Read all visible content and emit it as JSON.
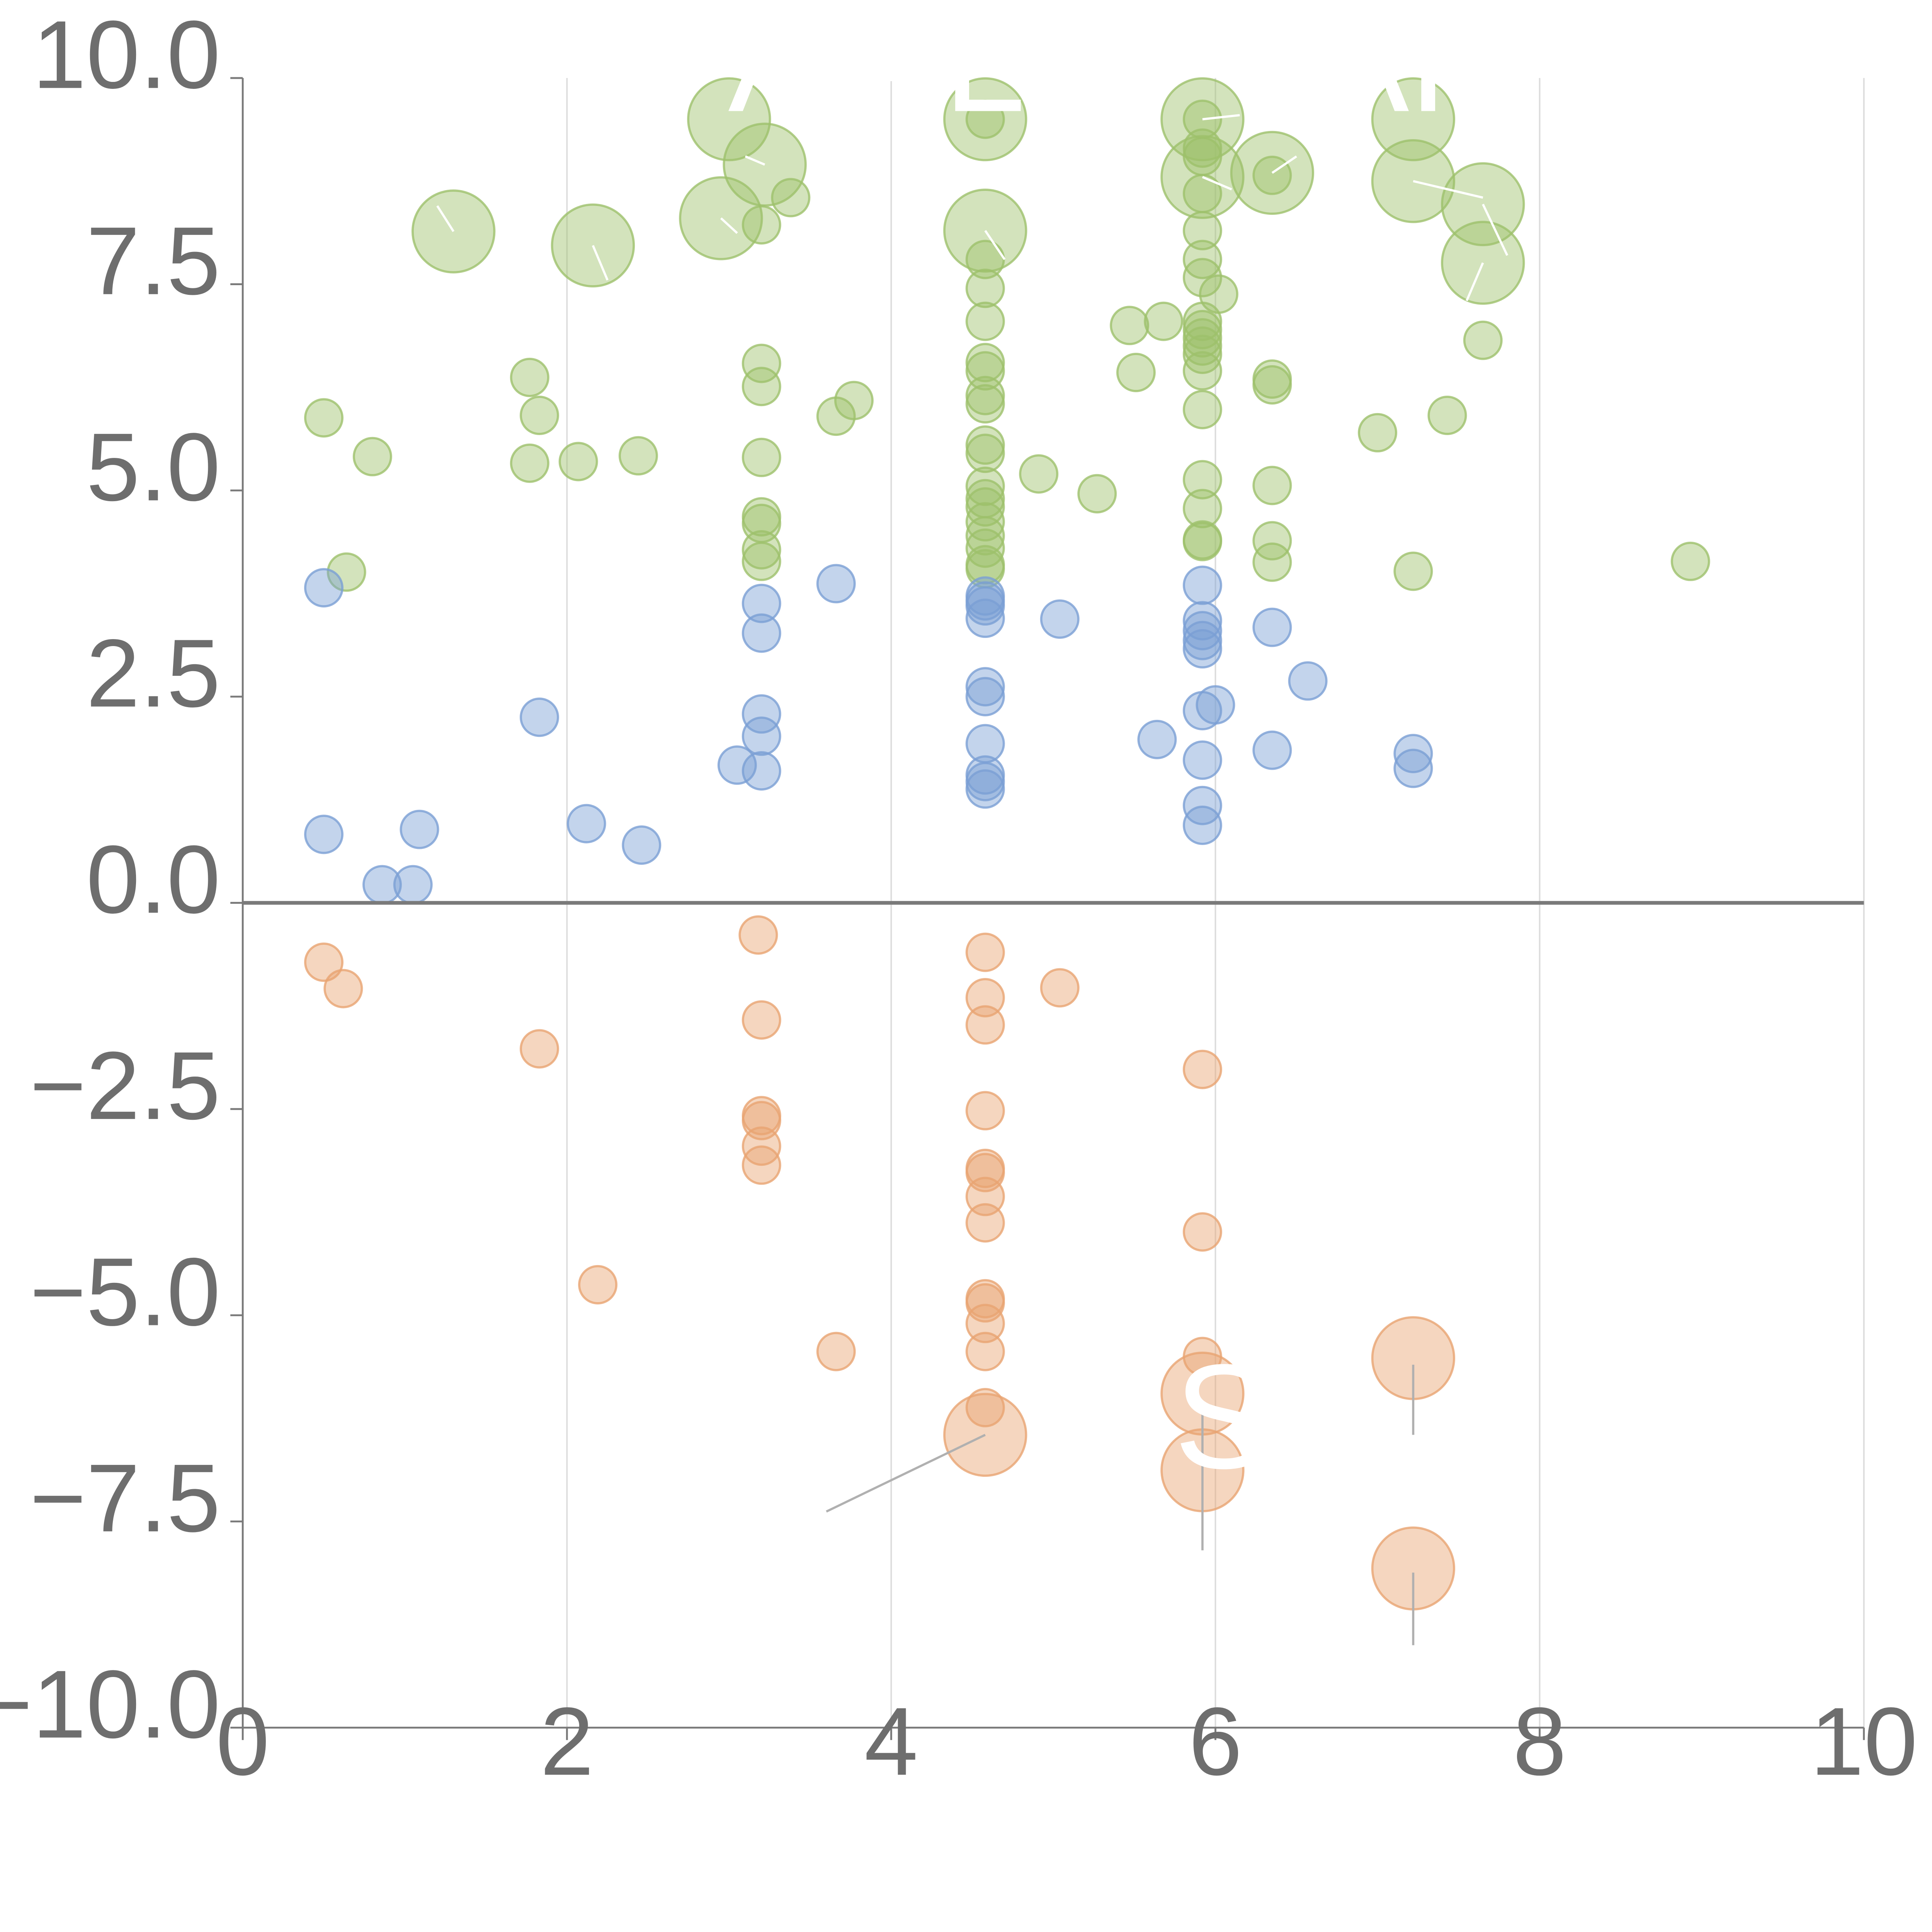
{
  "chart_data": {
    "type": "scatter",
    "title": "",
    "xlabel": "",
    "ylabel": "",
    "xlim": [
      0,
      10
    ],
    "ylim": [
      -10,
      10
    ],
    "grid": "vertical",
    "x_ticks": [
      "0",
      "2",
      "4",
      "6",
      "8",
      "10"
    ],
    "y_ticks": [
      "10.0",
      "7.5",
      "5.0",
      "2.5",
      "0.0",
      "−2.5",
      "−5.0",
      "−7.5",
      "−10.0"
    ],
    "series": [
      {
        "name": "green",
        "color": "#9dc16b",
        "points": [
          [
            0.5,
            5.88,
            1
          ],
          [
            0.8,
            5.41,
            1
          ],
          [
            0.64,
            4.01,
            1
          ],
          [
            1.3,
            8.14,
            2.2
          ],
          [
            1.77,
            6.37,
            1
          ],
          [
            1.77,
            5.33,
            1
          ],
          [
            1.83,
            5.91,
            1
          ],
          [
            2.07,
            5.35,
            1
          ],
          [
            2.16,
            7.97,
            2.2
          ],
          [
            2.44,
            5.42,
            1
          ],
          [
            3.0,
            9.5,
            2.2
          ],
          [
            2.95,
            8.3,
            2.2
          ],
          [
            3.22,
            8.95,
            2.2
          ],
          [
            3.2,
            8.22,
            1
          ],
          [
            3.38,
            8.55,
            1
          ],
          [
            3.2,
            6.54,
            1
          ],
          [
            3.2,
            6.26,
            1
          ],
          [
            3.2,
            5.4,
            1
          ],
          [
            3.2,
            4.68,
            1
          ],
          [
            3.2,
            4.6,
            1
          ],
          [
            3.2,
            4.28,
            1
          ],
          [
            3.2,
            4.14,
            1
          ],
          [
            3.66,
            5.9,
            1
          ],
          [
            3.77,
            6.09,
            1
          ],
          [
            4.58,
            9.5,
            2.2
          ],
          [
            4.58,
            9.5,
            1
          ],
          [
            4.58,
            8.15,
            2.2
          ],
          [
            4.58,
            7.8,
            1
          ],
          [
            4.58,
            7.45,
            1
          ],
          [
            4.58,
            7.05,
            1
          ],
          [
            4.58,
            6.55,
            1
          ],
          [
            4.58,
            6.45,
            1
          ],
          [
            4.58,
            6.15,
            1
          ],
          [
            4.58,
            6.05,
            1
          ],
          [
            4.58,
            5.55,
            1
          ],
          [
            4.58,
            5.45,
            1
          ],
          [
            4.58,
            5.05,
            1
          ],
          [
            4.58,
            4.9,
            1
          ],
          [
            4.58,
            4.8,
            1
          ],
          [
            4.58,
            4.62,
            1
          ],
          [
            4.58,
            4.45,
            1
          ],
          [
            4.58,
            4.3,
            1
          ],
          [
            4.58,
            4.1,
            1
          ],
          [
            4.58,
            4.05,
            1
          ],
          [
            4.91,
            5.2,
            1
          ],
          [
            5.27,
            4.96,
            1
          ],
          [
            5.47,
            7.0,
            1
          ],
          [
            5.51,
            6.43,
            1
          ],
          [
            5.68,
            7.05,
            1
          ],
          [
            5.92,
            9.5,
            2.2
          ],
          [
            5.92,
            9.5,
            1
          ],
          [
            5.92,
            9.15,
            1
          ],
          [
            5.92,
            9.05,
            1
          ],
          [
            5.92,
            8.8,
            2.2
          ],
          [
            5.92,
            8.6,
            1
          ],
          [
            5.92,
            8.15,
            1
          ],
          [
            5.92,
            7.8,
            1
          ],
          [
            5.92,
            7.58,
            1
          ],
          [
            6.02,
            7.38,
            1
          ],
          [
            5.92,
            7.05,
            1
          ],
          [
            5.92,
            6.95,
            1
          ],
          [
            5.92,
            6.85,
            1
          ],
          [
            5.92,
            6.75,
            1
          ],
          [
            5.92,
            6.65,
            1
          ],
          [
            5.92,
            6.45,
            1
          ],
          [
            5.92,
            5.98,
            1
          ],
          [
            5.92,
            5.13,
            1
          ],
          [
            5.92,
            4.78,
            1
          ],
          [
            5.92,
            4.4,
            1
          ],
          [
            5.92,
            4.38,
            1
          ],
          [
            6.35,
            8.85,
            2.2
          ],
          [
            6.35,
            8.82,
            1
          ],
          [
            6.35,
            6.35,
            1
          ],
          [
            6.35,
            6.28,
            1
          ],
          [
            6.35,
            5.06,
            1
          ],
          [
            6.35,
            4.39,
            1
          ],
          [
            6.35,
            4.13,
            1
          ],
          [
            7.0,
            5.7,
            1
          ],
          [
            7.22,
            9.5,
            2.2
          ],
          [
            7.22,
            8.75,
            2.2
          ],
          [
            7.22,
            4.02,
            1
          ],
          [
            7.43,
            5.91,
            1
          ],
          [
            7.65,
            8.47,
            2.2
          ],
          [
            7.65,
            7.76,
            2.2
          ],
          [
            7.65,
            6.82,
            1
          ],
          [
            8.93,
            4.14,
            1
          ]
        ]
      },
      {
        "name": "blue",
        "color": "#7a9fd4",
        "points": [
          [
            0.5,
            3.82,
            1
          ],
          [
            0.5,
            0.83,
            1
          ],
          [
            0.86,
            0.22,
            1
          ],
          [
            1.05,
            0.22,
            1
          ],
          [
            1.09,
            0.89,
            1
          ],
          [
            1.83,
            2.25,
            1
          ],
          [
            2.12,
            0.96,
            1
          ],
          [
            2.46,
            0.7,
            1
          ],
          [
            3.05,
            1.67,
            1
          ],
          [
            3.2,
            3.63,
            1
          ],
          [
            3.2,
            3.27,
            1
          ],
          [
            3.2,
            2.29,
            1
          ],
          [
            3.2,
            2.02,
            1
          ],
          [
            3.2,
            1.6,
            1
          ],
          [
            3.66,
            3.87,
            1
          ],
          [
            4.58,
            3.72,
            1
          ],
          [
            4.58,
            3.66,
            1
          ],
          [
            4.58,
            3.6,
            1
          ],
          [
            4.58,
            3.45,
            1
          ],
          [
            4.58,
            2.62,
            1
          ],
          [
            4.58,
            2.5,
            1
          ],
          [
            4.58,
            1.93,
            1
          ],
          [
            4.58,
            1.55,
            1
          ],
          [
            4.58,
            1.47,
            1
          ],
          [
            4.58,
            1.38,
            1
          ],
          [
            5.04,
            3.44,
            1
          ],
          [
            5.64,
            1.98,
            1
          ],
          [
            5.92,
            3.85,
            1
          ],
          [
            5.92,
            3.42,
            1
          ],
          [
            5.92,
            3.3,
            1
          ],
          [
            5.92,
            3.18,
            1
          ],
          [
            5.92,
            3.08,
            1
          ],
          [
            5.92,
            2.33,
            1
          ],
          [
            6.0,
            2.4,
            1
          ],
          [
            5.92,
            1.73,
            1
          ],
          [
            5.92,
            1.18,
            1
          ],
          [
            5.92,
            0.94,
            1
          ],
          [
            6.35,
            3.34,
            1
          ],
          [
            6.35,
            1.85,
            1
          ],
          [
            6.57,
            2.69,
            1
          ],
          [
            7.22,
            1.81,
            1
          ],
          [
            7.22,
            1.63,
            1
          ]
        ]
      },
      {
        "name": "orange",
        "color": "#e8a472",
        "points": [
          [
            0.5,
            -0.72,
            1
          ],
          [
            0.62,
            -1.04,
            1
          ],
          [
            1.83,
            -1.77,
            1
          ],
          [
            2.19,
            -4.63,
            1
          ],
          [
            3.18,
            -0.39,
            1
          ],
          [
            3.2,
            -1.42,
            1
          ],
          [
            3.2,
            -2.58,
            1
          ],
          [
            3.2,
            -2.64,
            1
          ],
          [
            3.2,
            -2.95,
            1
          ],
          [
            3.2,
            -3.18,
            1
          ],
          [
            3.66,
            -5.44,
            1
          ],
          [
            4.58,
            -0.6,
            1
          ],
          [
            4.58,
            -1.15,
            1
          ],
          [
            4.58,
            -1.48,
            1
          ],
          [
            4.58,
            -2.52,
            1
          ],
          [
            4.58,
            -3.22,
            1
          ],
          [
            4.58,
            -3.27,
            1
          ],
          [
            4.58,
            -3.56,
            1
          ],
          [
            4.58,
            -3.88,
            1
          ],
          [
            4.58,
            -4.8,
            1
          ],
          [
            4.58,
            -4.85,
            1
          ],
          [
            4.58,
            -5.1,
            1
          ],
          [
            4.58,
            -5.44,
            1
          ],
          [
            4.58,
            -6.12,
            1
          ],
          [
            4.58,
            -6.45,
            2.2
          ],
          [
            5.04,
            -1.03,
            1
          ],
          [
            5.92,
            -2.02,
            1
          ],
          [
            5.92,
            -3.99,
            1
          ],
          [
            5.92,
            -5.5,
            1
          ],
          [
            5.92,
            -5.95,
            2.2
          ],
          [
            5.92,
            -6.88,
            2.2
          ],
          [
            7.22,
            -5.52,
            2.2
          ],
          [
            7.22,
            -8.07,
            2.2
          ]
        ]
      }
    ],
    "annotations": [
      {
        "text": "ALC",
        "x": 4.6,
        "y": 9.6
      },
      {
        "text": "AR",
        "x": 7.22,
        "y": 9.6
      },
      {
        "text": "A",
        "x": 3.3,
        "y": 9.6
      },
      {
        "text": "S",
        "x": 6.05,
        "y": -6.85
      }
    ]
  }
}
